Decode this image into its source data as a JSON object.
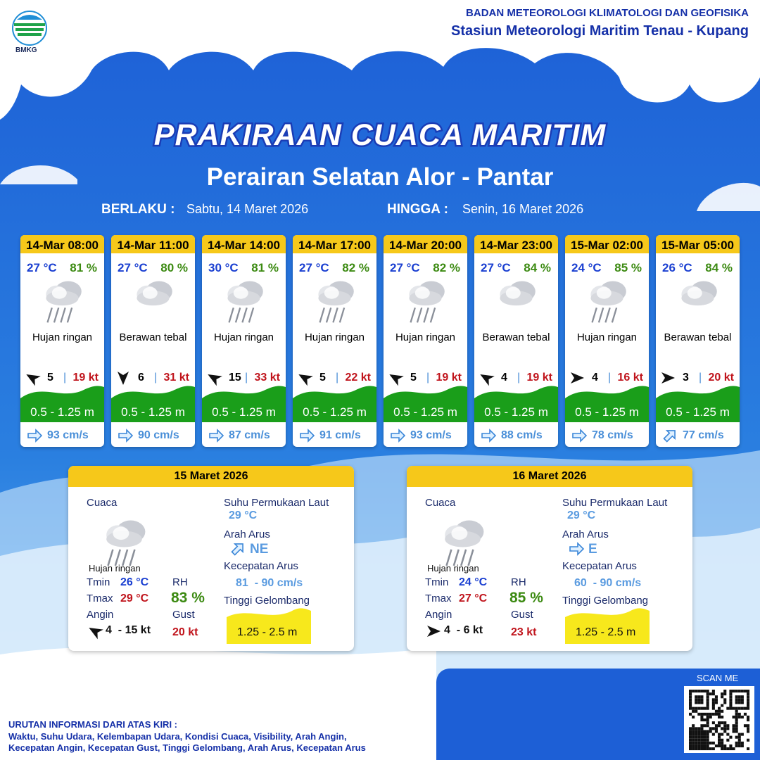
{
  "header": {
    "logo_text": "BMKG",
    "organization": "BADAN METEOROLOGI KLIMATOLOGI DAN GEOFISIKA",
    "station": "Stasiun Meteorologi Maritim Tenau - Kupang"
  },
  "title": "PRAKIRAAN CUACA MARITIM",
  "subtitle": "Perairan Selatan Alor - Pantar",
  "validity": {
    "from_label": "BERLAKU :",
    "from": "Sabtu, 14 Maret 2026",
    "to_label": "HINGGA :",
    "to": "Senin, 16 Maret 2026"
  },
  "forecasts": [
    {
      "time": "14-Mar 08:00",
      "temperature": "27 °C",
      "humidity": "81 %",
      "weather": "Hujan ringan",
      "wind_speed": 5,
      "gust": "19 kt",
      "wave_height": "0.5 - 1.25 m",
      "current_speed": "93 cm/s"
    },
    {
      "time": "14-Mar 11:00",
      "temperature": "27 °C",
      "humidity": "80 %",
      "weather": "Berawan tebal",
      "wind_speed": 6,
      "gust": "31 kt",
      "wave_height": "0.5 - 1.25 m",
      "current_speed": "90 cm/s"
    },
    {
      "time": "14-Mar 14:00",
      "temperature": "30 °C",
      "humidity": "81 %",
      "weather": "Hujan ringan",
      "wind_speed": 15,
      "gust": "33 kt",
      "wave_height": "0.5 - 1.25 m",
      "current_speed": "87 cm/s"
    },
    {
      "time": "14-Mar 17:00",
      "temperature": "27 °C",
      "humidity": "82 %",
      "weather": "Hujan ringan",
      "wind_speed": 5,
      "gust": "22 kt",
      "wave_height": "0.5 - 1.25 m",
      "current_speed": "91 cm/s"
    },
    {
      "time": "14-Mar 20:00",
      "temperature": "27 °C",
      "humidity": "82 %",
      "weather": "Hujan ringan",
      "wind_speed": 5,
      "gust": "19 kt",
      "wave_height": "0.5 - 1.25 m",
      "current_speed": "93 cm/s"
    },
    {
      "time": "14-Mar 23:00",
      "temperature": "27 °C",
      "humidity": "84 %",
      "weather": "Berawan tebal",
      "wind_speed": 4,
      "gust": "19 kt",
      "wave_height": "0.5 - 1.25 m",
      "current_speed": "88 cm/s"
    },
    {
      "time": "15-Mar 02:00",
      "temperature": "24 °C",
      "humidity": "85 %",
      "weather": "Hujan ringan",
      "wind_speed": 4,
      "gust": "16 kt",
      "wave_height": "0.5 - 1.25 m",
      "current_speed": "78 cm/s"
    },
    {
      "time": "15-Mar 05:00",
      "temperature": "26 °C",
      "humidity": "84 %",
      "weather": "Berawan tebal",
      "wind_speed": 3,
      "gust": "20 kt",
      "wave_height": "0.5 - 1.25 m",
      "current_speed": "77 cm/s"
    }
  ],
  "summary_labels": {
    "weather": "Cuaca",
    "tmin": "Tmin",
    "tmax": "Tmax",
    "wind": "Angin",
    "rh": "RH",
    "gust": "Gust",
    "sst": "Suhu Permukaan Laut",
    "current_direction": "Arah Arus",
    "current_speed": "Kecepatan Arus",
    "wave_height": "Tinggi Gelombang"
  },
  "daily": [
    {
      "date": "15 Maret 2026",
      "weather": "Hujan ringan",
      "tmin": "26 °C",
      "tmax": "29 °C",
      "wind": "4  - 15 kt",
      "rh": "83 %",
      "gust": "20 kt",
      "sst": "29 °C",
      "current_direction": "NE",
      "current_speed": "81  - 90 cm/s",
      "wave_height": "1.25 - 2.5 m"
    },
    {
      "date": "16 Maret 2026",
      "weather": "Hujan ringan",
      "tmin": "24 °C",
      "tmax": "27 °C",
      "wind": "4  - 6 kt",
      "rh": "85 %",
      "gust": "23 kt",
      "sst": "29 °C",
      "current_direction": "E",
      "current_speed": "60  - 90 cm/s",
      "wave_height": "1.25 - 2.5 m"
    }
  ],
  "footer": {
    "scan_label": "SCAN ME",
    "legend_title": "URUTAN INFORMASI DARI ATAS KIRI :",
    "legend_lines": [
      "Waktu, Suhu Udara, Kelembapan Udara, Kondisi Cuaca, Visibility, Arah Angin,",
      "Kecepatan Angin, Kecepatan Gust, Tinggi Gelombang, Arah Arus, Kecepatan Arus"
    ]
  }
}
